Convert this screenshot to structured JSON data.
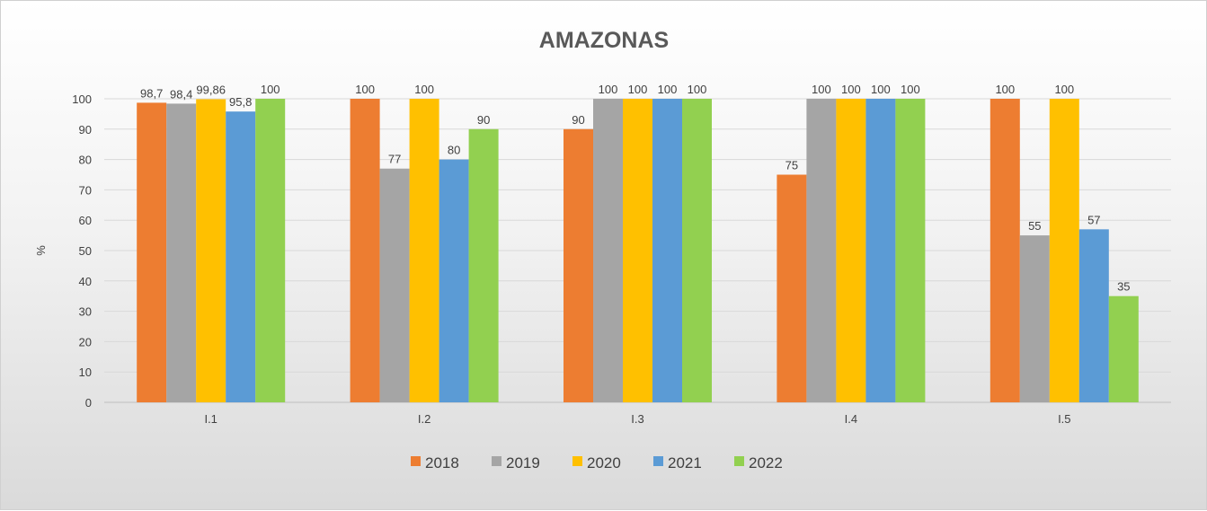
{
  "chart_data": {
    "type": "bar",
    "title": "AMAZONAS",
    "ylabel": "%",
    "xlabel": "",
    "ylim": [
      0,
      100
    ],
    "yticks": [
      0,
      10,
      20,
      30,
      40,
      50,
      60,
      70,
      80,
      90,
      100
    ],
    "grid": true,
    "legend_position": "bottom",
    "categories": [
      "I.1",
      "I.2",
      "I.3",
      "I.4",
      "I.5"
    ],
    "series": [
      {
        "name": "2018",
        "color": "#ED7D31",
        "values": [
          98.7,
          100,
          90,
          75,
          100
        ],
        "labels": [
          "98,7",
          "100",
          "90",
          "75",
          "100"
        ]
      },
      {
        "name": "2019",
        "color": "#A5A5A5",
        "values": [
          98.4,
          77,
          100,
          100,
          55
        ],
        "labels": [
          "98,4",
          "77",
          "100",
          "100",
          "55"
        ]
      },
      {
        "name": "2020",
        "color": "#FFC000",
        "values": [
          99.86,
          100,
          100,
          100,
          100
        ],
        "labels": [
          "99,86",
          "100",
          "100",
          "100",
          "100"
        ]
      },
      {
        "name": "2021",
        "color": "#5B9BD5",
        "values": [
          95.8,
          80,
          100,
          100,
          57
        ],
        "labels": [
          "95,8",
          "80",
          "100",
          "100",
          "57"
        ]
      },
      {
        "name": "2022",
        "color": "#92D050",
        "values": [
          100,
          90,
          100,
          100,
          35
        ],
        "labels": [
          "100",
          "90",
          "100",
          "100",
          "35"
        ]
      }
    ]
  }
}
